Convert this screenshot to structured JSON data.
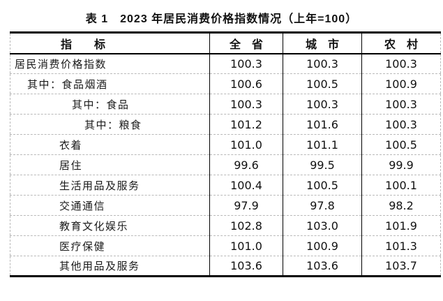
{
  "title": "表 1　2023 年居民消费价格指数情况（上年=100）",
  "table": {
    "headers": [
      "指　　标",
      "全　省",
      "城　市",
      "农　村"
    ],
    "rows": [
      {
        "label": "居民消费价格指数",
        "level": "top",
        "values": [
          "100.3",
          "100.3",
          "100.3"
        ]
      },
      {
        "label": "其中：食品烟酒",
        "level": "sub1",
        "values": [
          "100.6",
          "100.5",
          "100.9"
        ]
      },
      {
        "label": "其中：食品",
        "level": "sub2",
        "values": [
          "100.3",
          "100.3",
          "100.3"
        ]
      },
      {
        "label": "其中：粮食",
        "level": "sub3",
        "values": [
          "101.2",
          "101.6",
          "100.3"
        ]
      },
      {
        "label": "衣着",
        "level": "item",
        "values": [
          "101.0",
          "101.1",
          "100.5"
        ]
      },
      {
        "label": "居住",
        "level": "item",
        "values": [
          "99.6",
          "99.5",
          "99.9"
        ]
      },
      {
        "label": "生活用品及服务",
        "level": "item",
        "values": [
          "100.4",
          "100.5",
          "100.1"
        ]
      },
      {
        "label": "交通通信",
        "level": "item",
        "values": [
          "97.9",
          "97.8",
          "98.2"
        ]
      },
      {
        "label": "教育文化娱乐",
        "level": "item",
        "values": [
          "102.8",
          "103.0",
          "101.9"
        ]
      },
      {
        "label": "医疗保健",
        "level": "item",
        "values": [
          "101.0",
          "100.9",
          "101.3"
        ]
      },
      {
        "label": "其他用品及服务",
        "level": "item",
        "values": [
          "103.6",
          "103.6",
          "103.7"
        ]
      }
    ]
  },
  "colors": {
    "background": "#ffffff",
    "text": "#1a1a1a",
    "border_strong": "#000000",
    "border_dashed": "#b9b9b9"
  },
  "chart_data": {
    "type": "table",
    "title": "表1 2023 年居民消费价格指数情况（上年=100）",
    "columns": [
      "指标",
      "全省",
      "城市",
      "农村"
    ],
    "rows": [
      [
        "居民消费价格指数",
        100.3,
        100.3,
        100.3
      ],
      [
        "其中：食品烟酒",
        100.6,
        100.5,
        100.9
      ],
      [
        "其中：食品",
        100.3,
        100.3,
        100.3
      ],
      [
        "其中：粮食",
        101.2,
        101.6,
        100.3
      ],
      [
        "衣着",
        101.0,
        101.1,
        100.5
      ],
      [
        "居住",
        99.6,
        99.5,
        99.9
      ],
      [
        "生活用品及服务",
        100.4,
        100.5,
        100.1
      ],
      [
        "交通通信",
        97.9,
        97.8,
        98.2
      ],
      [
        "教育文化娱乐",
        102.8,
        103.0,
        101.9
      ],
      [
        "医疗保健",
        101.0,
        100.9,
        101.3
      ],
      [
        "其他用品及服务",
        103.6,
        103.6,
        103.7
      ]
    ]
  }
}
